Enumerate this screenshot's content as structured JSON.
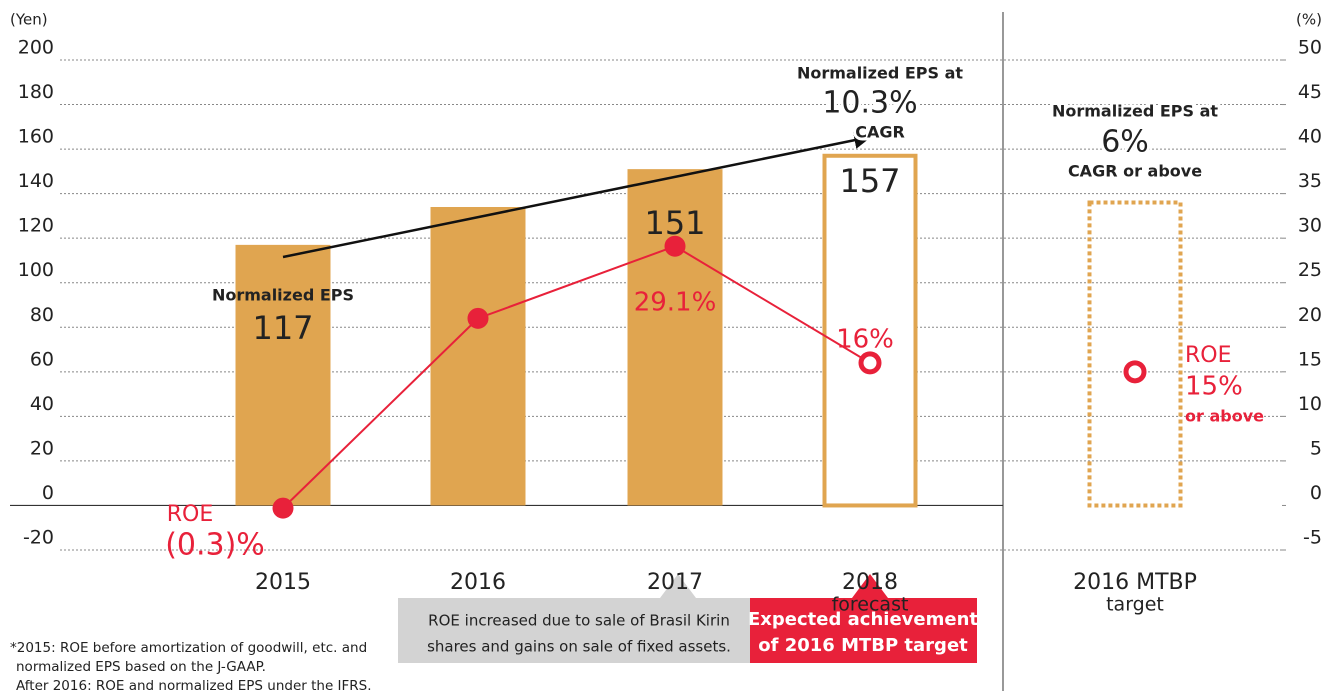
{
  "chart_data": {
    "type": "bar",
    "y_label": "(Yen)",
    "y2_label": "(%)",
    "categories": [
      "2015",
      "2016",
      "2017",
      "2018",
      "2016 MTBP"
    ],
    "category_sublabels": [
      null,
      null,
      null,
      "forecast",
      "target"
    ],
    "ylim": [
      -20,
      200
    ],
    "yticks": [
      -20,
      0,
      20,
      40,
      60,
      80,
      100,
      120,
      140,
      160,
      180,
      200
    ],
    "y2lim": [
      -5,
      50
    ],
    "y2ticks": [
      -5,
      0,
      5,
      10,
      15,
      20,
      25,
      30,
      35,
      40,
      45,
      50
    ],
    "grid": true,
    "series": [
      {
        "name": "Normalized EPS",
        "type": "bar",
        "color": "#e0a550",
        "values": [
          117,
          134,
          151,
          157,
          136
        ],
        "value_labels": [
          "117",
          null,
          "151",
          "157",
          null
        ],
        "styles": [
          "solid",
          "solid",
          "solid",
          "outline",
          "dotted"
        ]
      },
      {
        "name": "ROE",
        "type": "line",
        "axis": "y2",
        "color": "#e8213a",
        "values": [
          -0.3,
          21,
          29.1,
          16,
          null
        ],
        "value_labels": [
          "(0.3)%",
          null,
          "29.1%",
          "16%",
          null
        ],
        "hollow": [
          false,
          false,
          false,
          true,
          null
        ]
      }
    ],
    "roe_target": {
      "name": "ROE",
      "value": 15,
      "value_label": "15%",
      "note": "or above"
    },
    "eps_cagr": {
      "label": "Normalized EPS at",
      "value_label": "10.3%",
      "note": "CAGR"
    },
    "eps_target": {
      "label": "Normalized EPS at",
      "value_label": "6%",
      "note": "CAGR or above"
    },
    "footnotes": [
      "*2015: ROE before amortization of goodwill, etc. and",
      "normalized EPS based on the J-GAAP.",
      "After 2016: ROE and normalized EPS under the IFRS."
    ],
    "callouts": [
      [
        "ROE increased due to sale of Brasil Kirin",
        "shares and gains on sale of fixed assets."
      ],
      [
        "Expected achievement",
        "of 2016 MTBP target"
      ]
    ]
  }
}
